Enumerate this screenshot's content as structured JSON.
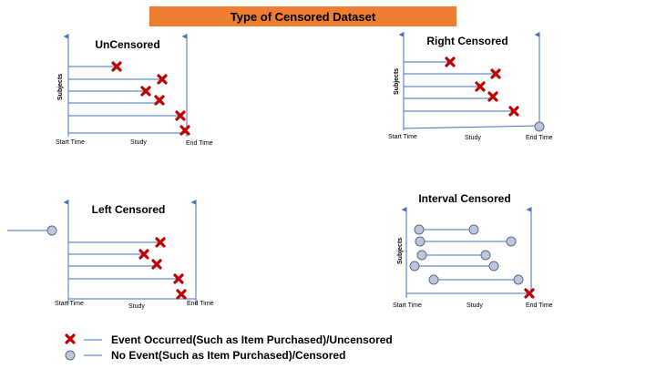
{
  "title": "Type of Censored Dataset",
  "panels": {
    "uncensored": {
      "title": "UnCensored",
      "ylabel": "Subjects",
      "start": "Start Time",
      "mid": "Study",
      "end": "End Time"
    },
    "right": {
      "title": "Right Censored",
      "ylabel": "Subjects",
      "start": "Start Time",
      "mid": "Study",
      "end": "End Time"
    },
    "left": {
      "title": "Left Censored",
      "start": "Start Time",
      "mid": "Study",
      "end": "End Time"
    },
    "interval": {
      "title": "Interval Censored",
      "ylabel": "Subjects",
      "start": "Start Time",
      "mid": "Study",
      "end": "End Time"
    }
  },
  "legend": {
    "event": "Event Occurred(Such as Item Purchased)/Uncensored",
    "no_event": "No Event(Such as Item Purchased)/Censored"
  },
  "colors": {
    "title_bg": "#ed7d31",
    "axis": "#4472c4",
    "x_mark": "#c00000",
    "circle_fill": "#bdc7d9",
    "circle_stroke": "#5a6b8c"
  }
}
